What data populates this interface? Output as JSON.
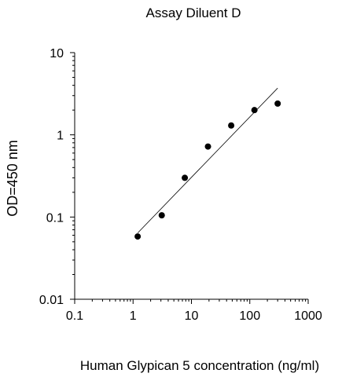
{
  "chart_data": {
    "type": "scatter",
    "title": "Assay Diluent D",
    "xlabel": "Human Glypican 5 concentration (ng/ml)",
    "ylabel": "OD=450 nm",
    "x_scale": "log",
    "y_scale": "log",
    "xlim": [
      0.1,
      1000
    ],
    "ylim": [
      0.01,
      10
    ],
    "x_ticks": [
      0.1,
      1,
      10,
      100,
      1000
    ],
    "x_tick_labels": [
      "0.1",
      "1",
      "10",
      "100",
      "1000"
    ],
    "y_ticks": [
      0.01,
      0.1,
      1,
      10
    ],
    "y_tick_labels": [
      "0.01",
      "0.1",
      "1",
      "10"
    ],
    "grid": false,
    "series": [
      {
        "points": [
          {
            "x": 1.2,
            "y": 0.058
          },
          {
            "x": 3.1,
            "y": 0.105
          },
          {
            "x": 7.7,
            "y": 0.3
          },
          {
            "x": 19.2,
            "y": 0.72
          },
          {
            "x": 48,
            "y": 1.3
          },
          {
            "x": 120,
            "y": 2.0
          },
          {
            "x": 300,
            "y": 2.4
          }
        ],
        "color": "#000000"
      }
    ],
    "fit_line": {
      "points": [
        {
          "x": 1.2,
          "y": 0.064
        },
        {
          "x": 300,
          "y": 3.7
        }
      ],
      "color": "#000000"
    }
  }
}
